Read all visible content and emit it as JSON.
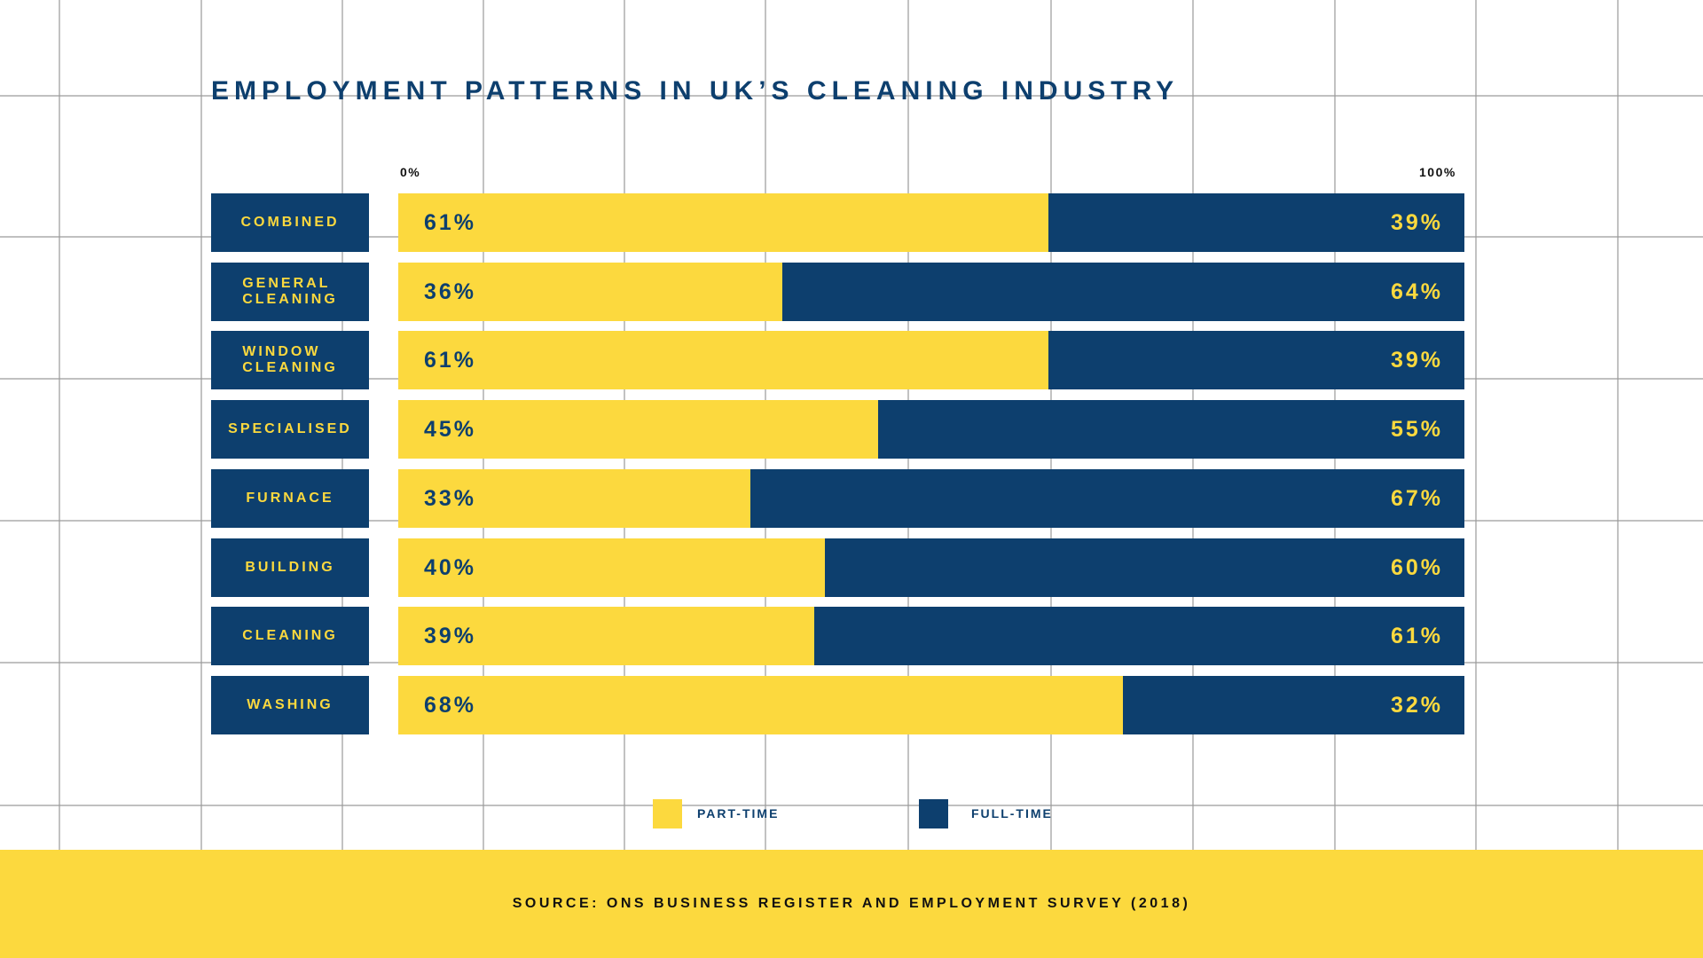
{
  "colors": {
    "part_time": "#fcd93e",
    "full_time": "#0d3f6e"
  },
  "chart_data": {
    "type": "bar",
    "orientation": "horizontal",
    "stacked": true,
    "title": "EMPLOYMENT PATTERNS IN UK’S CLEANING INDUSTRY",
    "axis": {
      "min_label": "0%",
      "max_label": "100%",
      "xlim": [
        0,
        100
      ]
    },
    "categories": [
      "COMBINED",
      "GENERAL\nCLEANING",
      "WINDOW\nCLEANING",
      "SPECIALISED",
      "FURNACE",
      "BUILDING",
      "CLEANING",
      "WASHING"
    ],
    "series": [
      {
        "name": "PART-TIME",
        "values": [
          61,
          36,
          61,
          45,
          33,
          40,
          39,
          68
        ],
        "labels": [
          "61%",
          "36%",
          "61%",
          "45%",
          "33%",
          "40%",
          "39%",
          "68%"
        ]
      },
      {
        "name": "FULL-TIME",
        "values": [
          39,
          64,
          39,
          55,
          67,
          60,
          61,
          32
        ],
        "labels": [
          "39%",
          "64%",
          "39%",
          "55%",
          "67%",
          "60%",
          "61%",
          "32%"
        ]
      }
    ],
    "legend": {
      "position": "bottom"
    }
  },
  "footer": {
    "source": "SOURCE: ONS BUSINESS REGISTER AND EMPLOYMENT SURVEY (2018)"
  }
}
